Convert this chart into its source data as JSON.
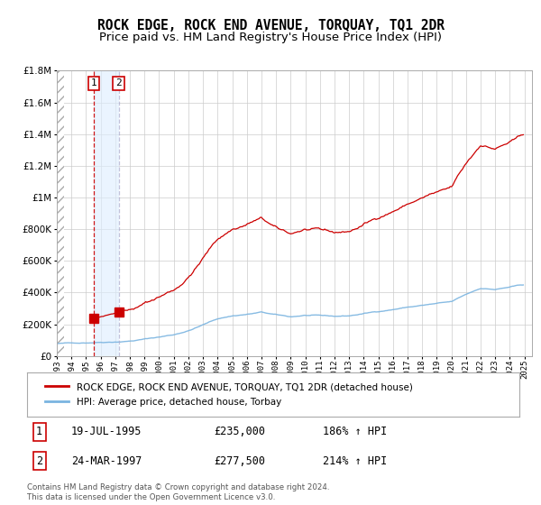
{
  "title": "ROCK EDGE, ROCK END AVENUE, TORQUAY, TQ1 2DR",
  "subtitle": "Price paid vs. HM Land Registry's House Price Index (HPI)",
  "legend_line1": "ROCK EDGE, ROCK END AVENUE, TORQUAY, TQ1 2DR (detached house)",
  "legend_line2": "HPI: Average price, detached house, Torbay",
  "footer": "Contains HM Land Registry data © Crown copyright and database right 2024.\nThis data is licensed under the Open Government Licence v3.0.",
  "table": [
    {
      "num": "1",
      "date": "19-JUL-1995",
      "price": "£235,000",
      "hpi": "186% ↑ HPI"
    },
    {
      "num": "2",
      "date": "24-MAR-1997",
      "price": "£277,500",
      "hpi": "214% ↑ HPI"
    }
  ],
  "point1_year": 1995.54,
  "point1_val": 235000,
  "point2_year": 1997.23,
  "point2_val": 277500,
  "ylim_max": 1800000,
  "xlim_start": 1993.0,
  "xlim_end": 2025.5,
  "red_color": "#cc0000",
  "blue_color": "#7ab4e0",
  "background_color": "#ffffff",
  "grid_color": "#cccccc",
  "title_fontsize": 10.5,
  "subtitle_fontsize": 9.5
}
